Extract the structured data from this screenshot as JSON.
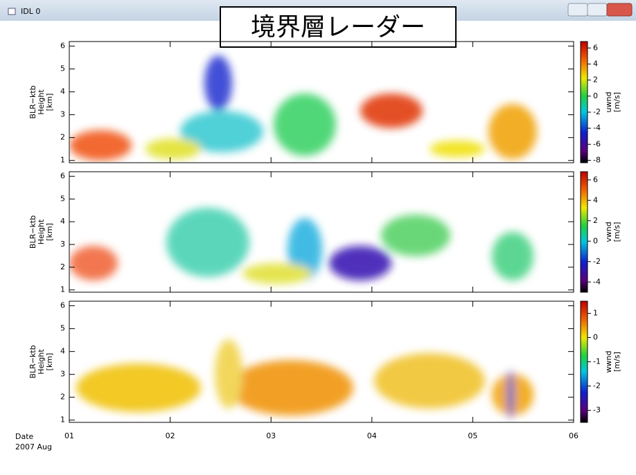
{
  "window": {
    "title": "IDL 0"
  },
  "overlay_label": "境界層レーダー",
  "date_label": "Date",
  "month_label": "2007 Aug",
  "chart_data": [
    {
      "type": "heatmap",
      "ylabel": [
        "BLR−ktb",
        "Height",
        "[km]"
      ],
      "ylim": [
        0.9,
        6.2
      ],
      "yticks": [
        1,
        2,
        3,
        4,
        5,
        6
      ],
      "colorbar_label": [
        "uwnd",
        "[m/s]"
      ],
      "zlim": [
        -8.3,
        6.8
      ],
      "zticks": [
        6,
        4,
        2,
        0,
        -2,
        -4,
        -6,
        -8
      ]
    },
    {
      "type": "heatmap",
      "ylabel": [
        "BLR−ktb",
        "Height",
        "[km]"
      ],
      "ylim": [
        0.9,
        6.2
      ],
      "yticks": [
        1,
        2,
        3,
        4,
        5,
        6
      ],
      "colorbar_label": [
        "vwnd",
        "[m/s]"
      ],
      "zlim": [
        -5,
        6.8
      ],
      "zticks": [
        6,
        4,
        2,
        0,
        -2,
        -4
      ]
    },
    {
      "type": "heatmap",
      "ylabel": [
        "BLR−ktb",
        "Height",
        "[km]"
      ],
      "ylim": [
        0.9,
        6.2
      ],
      "yticks": [
        1,
        2,
        3,
        4,
        5,
        6
      ],
      "colorbar_label": [
        "wwnd",
        "[m/s]"
      ],
      "zlim": [
        -3.5,
        1.5
      ],
      "zticks": [
        1,
        0,
        -1,
        -2,
        -3
      ],
      "xlim": [
        1,
        6
      ],
      "xticks": [
        {
          "value": 1,
          "label": "01"
        },
        {
          "value": 2,
          "label": "02"
        },
        {
          "value": 3,
          "label": "03"
        },
        {
          "value": 4,
          "label": "04"
        },
        {
          "value": 5,
          "label": "05"
        },
        {
          "value": 6,
          "label": "06"
        }
      ]
    }
  ]
}
